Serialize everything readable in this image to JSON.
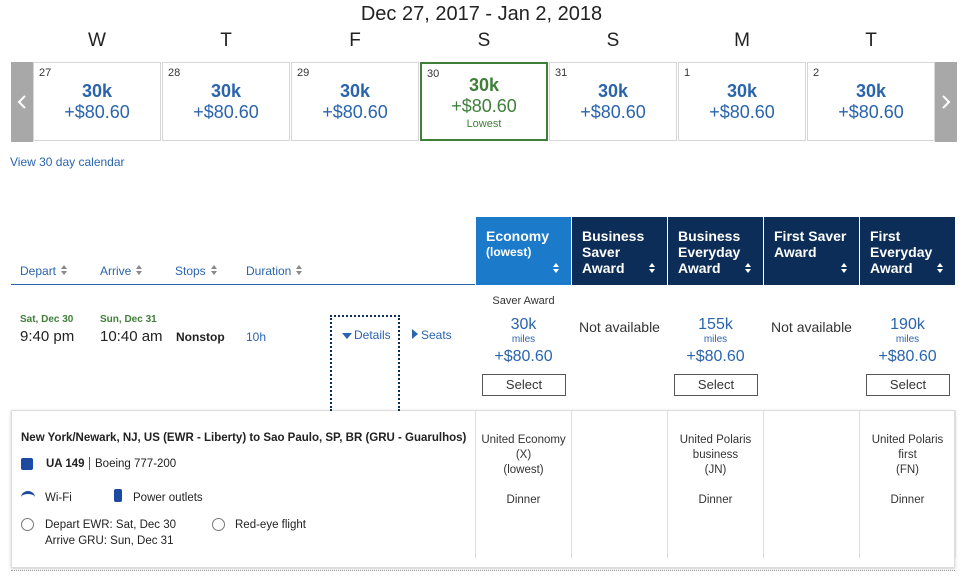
{
  "header": {
    "date_range": "Dec 27, 2017 - Jan 2, 2018"
  },
  "calendar": {
    "days": [
      {
        "weekday": "W",
        "day": "27",
        "miles": "30k",
        "fee": "+$80.60"
      },
      {
        "weekday": "T",
        "day": "28",
        "miles": "30k",
        "fee": "+$80.60"
      },
      {
        "weekday": "F",
        "day": "29",
        "miles": "30k",
        "fee": "+$80.60"
      },
      {
        "weekday": "S",
        "day": "30",
        "miles": "30k",
        "fee": "+$80.60",
        "note": "Lowest"
      },
      {
        "weekday": "S",
        "day": "31",
        "miles": "30k",
        "fee": "+$80.60"
      },
      {
        "weekday": "M",
        "day": "1",
        "miles": "30k",
        "fee": "+$80.60"
      },
      {
        "weekday": "T",
        "day": "2",
        "miles": "30k",
        "fee": "+$80.60"
      }
    ],
    "link": "View 30 day calendar"
  },
  "sort": [
    "Depart",
    "Arrive",
    "Stops",
    "Duration"
  ],
  "fares": [
    {
      "name": "Economy",
      "sub": "(lowest)",
      "award_type": "Saver Award",
      "miles": "30k",
      "unit": "miles",
      "fee": "+$80.60",
      "button": "Select",
      "cabin": [
        "United Economy",
        "(X)",
        "(lowest)"
      ],
      "meal": "Dinner"
    },
    {
      "name": "Business Saver Award",
      "status": "Not available"
    },
    {
      "name": "Business Everyday Award",
      "miles": "155k",
      "unit": "miles",
      "fee": "+$80.60",
      "button": "Select",
      "cabin": [
        "United Polaris",
        "business",
        "(JN)"
      ],
      "meal": "Dinner"
    },
    {
      "name": "First Saver Award",
      "status": "Not available"
    },
    {
      "name": "First Everyday Award",
      "miles": "190k",
      "unit": "miles",
      "fee": "+$80.60",
      "button": "Select",
      "cabin": [
        "United Polaris",
        "first",
        "(FN)"
      ],
      "meal": "Dinner"
    }
  ],
  "flight": {
    "depart_date": "Sat, Dec 30",
    "depart_time": "9:40 pm",
    "arrive_date": "Sun, Dec 31",
    "arrive_time": "10:40 am",
    "stops": "Nonstop",
    "duration": "10h",
    "details": "Details",
    "seats": "Seats",
    "route": "New York/Newark, NJ, US (EWR - Liberty) to Sao Paulo, SP, BR (GRU - Guarulhos)",
    "flight_no": "UA 149",
    "aircraft": "Boeing 777-200",
    "amenities": [
      "Wi-Fi",
      "Power outlets"
    ],
    "notices": [
      "Depart EWR: Sat, Dec 30",
      "Arrive GRU: Sun, Dec 31",
      "Red-eye flight"
    ]
  }
}
